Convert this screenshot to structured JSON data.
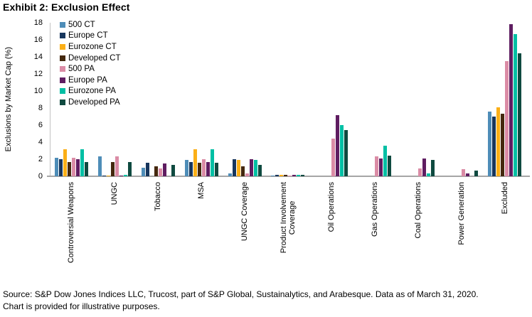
{
  "title": "Exhibit 2: Exclusion Effect",
  "chart_data": {
    "type": "bar",
    "title": "Exhibit 2: Exclusion Effect",
    "xlabel": "",
    "ylabel": "Exclusions by Market Cap (%)",
    "ylim": [
      0,
      18
    ],
    "ytick_step": 2,
    "grid": false,
    "legend_position": "top-left-inside",
    "categories": [
      "Controversial Weapons",
      "UNGC",
      "Tobacco",
      "MSA",
      "UNGC Coverage",
      "Product Involvement\nCoverage",
      "Oil Operations",
      "Gas Operations",
      "Coal Operations",
      "Power Generation",
      "Excluded"
    ],
    "series": [
      {
        "name": "500 CT",
        "color": "#4E8DB8",
        "values": [
          2.2,
          2.3,
          1.0,
          1.9,
          0.35,
          0.05,
          0,
          0,
          0,
          0,
          7.6
        ]
      },
      {
        "name": "Europe CT",
        "color": "#17365D",
        "values": [
          2.0,
          0.1,
          1.6,
          1.7,
          2.0,
          0.2,
          0,
          0,
          0,
          0,
          7.0
        ]
      },
      {
        "name": "Eurozone CT",
        "color": "#FBAF17",
        "values": [
          3.2,
          0.1,
          0,
          3.2,
          1.9,
          0.2,
          0,
          0,
          0,
          0,
          8.1
        ]
      },
      {
        "name": "Developed CT",
        "color": "#44280E",
        "values": [
          1.7,
          1.7,
          1.2,
          1.6,
          1.2,
          0.2,
          0,
          0,
          0,
          0,
          7.3
        ]
      },
      {
        "name": "500 PA",
        "color": "#DB8CA6",
        "values": [
          2.2,
          2.3,
          0.9,
          2.0,
          0.35,
          0.05,
          4.4,
          2.3,
          0.9,
          0.8,
          13.5
        ]
      },
      {
        "name": "Europe PA",
        "color": "#5F1D61",
        "values": [
          2.0,
          0.1,
          1.5,
          1.7,
          2.0,
          0.15,
          7.2,
          2.1,
          2.1,
          0.35,
          17.8
        ]
      },
      {
        "name": "Eurozone PA",
        "color": "#00BFA4",
        "values": [
          3.2,
          0.15,
          0,
          3.2,
          1.9,
          0.2,
          6.0,
          3.6,
          0.35,
          0,
          16.7
        ]
      },
      {
        "name": "Developed PA",
        "color": "#0F4A40",
        "values": [
          1.7,
          1.7,
          1.3,
          1.6,
          1.3,
          0.2,
          5.4,
          2.4,
          1.9,
          0.65,
          14.4
        ]
      }
    ]
  },
  "axis_colors": {
    "y_axis_line": "#C3C3C3",
    "baseline": "#A6A6A6"
  },
  "footer": {
    "line1": "Source: S&P Dow Jones Indices LLC, Trucost, part of S&P Global, Sustainalytics, and Arabesque. Data as of March 31, 2020.",
    "line2": "Chart is provided for illustrative purposes."
  }
}
